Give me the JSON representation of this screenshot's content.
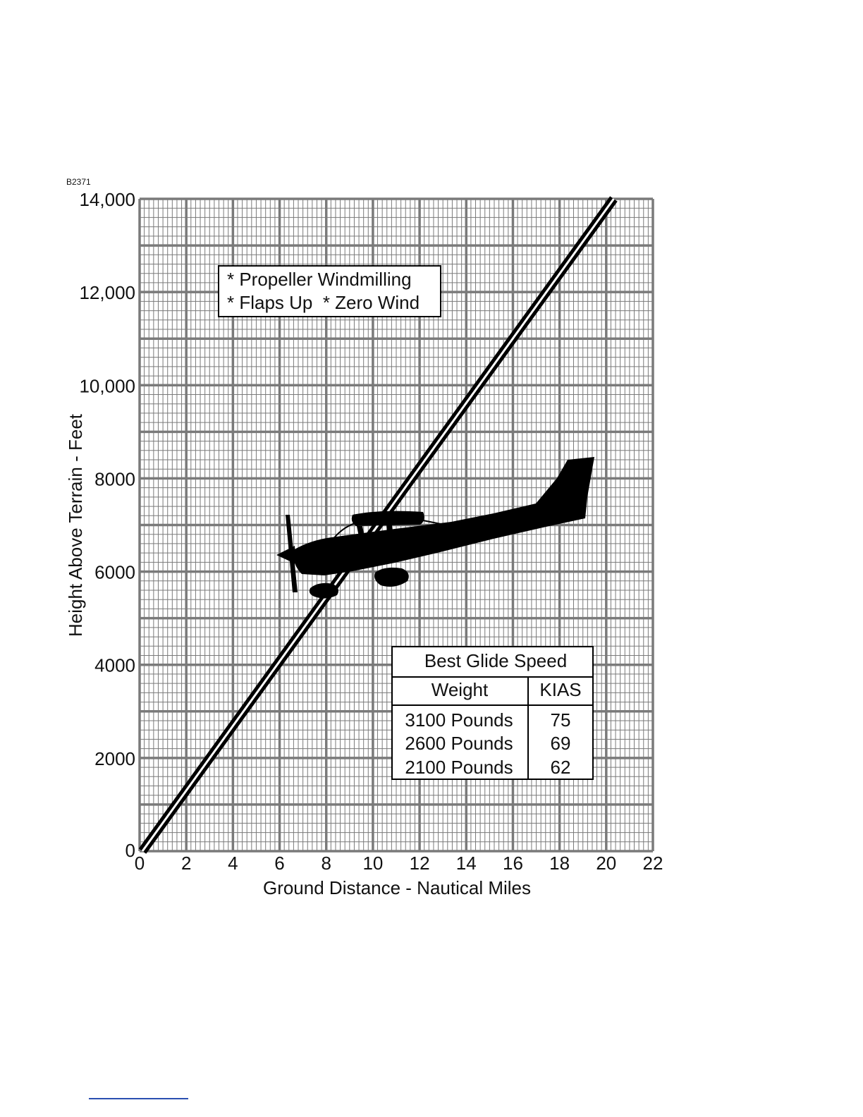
{
  "figure_code": "B2371",
  "chart_data": {
    "type": "line",
    "title": "",
    "xlabel": "Ground Distance - Nautical Miles",
    "ylabel": "Height Above Terrain - Feet",
    "xlim": [
      0,
      22
    ],
    "ylim": [
      0,
      14000
    ],
    "x_ticks": [
      0,
      2,
      4,
      6,
      8,
      10,
      12,
      14,
      16,
      18,
      20,
      22
    ],
    "y_ticks": [
      0,
      2000,
      4000,
      6000,
      8000,
      10000,
      12000,
      14000
    ],
    "x_tick_labels": [
      "0",
      "2",
      "4",
      "6",
      "8",
      "10",
      "12",
      "14",
      "16",
      "18",
      "20",
      "22"
    ],
    "y_tick_labels": [
      "0",
      "2000",
      "4000",
      "6000",
      "8000",
      "10,000",
      "12,000",
      "14,000"
    ],
    "grid": true,
    "series": [
      {
        "x": [
          0,
          20.2
        ],
        "y": [
          0,
          14000
        ]
      }
    ],
    "conditions_note": [
      "* Propeller Windmilling",
      "* Flaps Up  * Zero Wind"
    ],
    "glide_table": {
      "title": "Best Glide Speed",
      "headers": [
        "Weight",
        "KIAS"
      ],
      "rows": [
        [
          "3100 Pounds",
          "75"
        ],
        [
          "2600 Pounds",
          "69"
        ],
        [
          "2100 Pounds",
          "62"
        ]
      ]
    }
  },
  "colors": {
    "grid": "#7a7a7a",
    "ink": "#000000",
    "rule": "#2a4fb0"
  }
}
